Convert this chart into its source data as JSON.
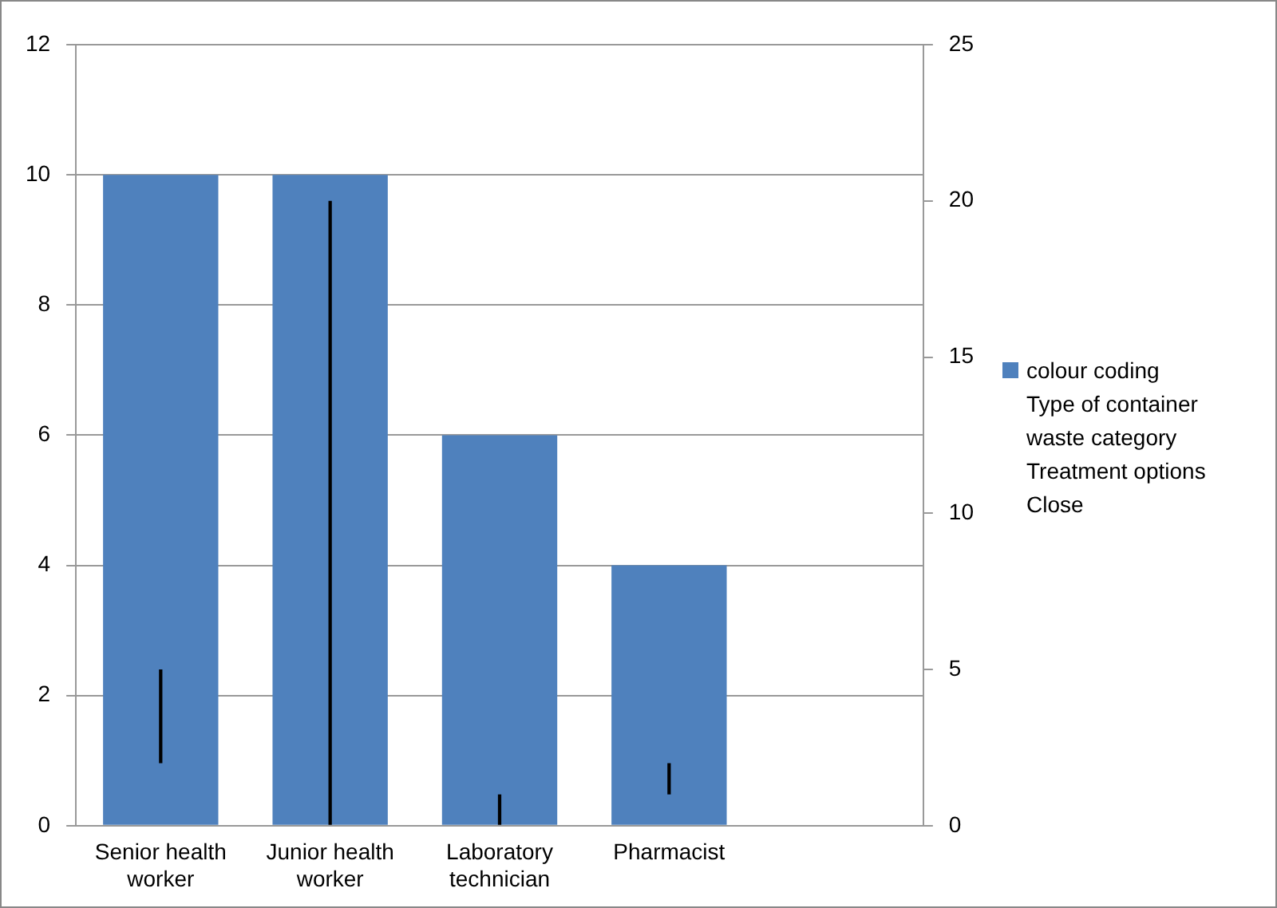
{
  "chart_data": {
    "type": "bar",
    "categories": [
      "Senior health worker",
      "Junior health worker",
      "Laboratory technician",
      "Pharmacist",
      null
    ],
    "series": [
      {
        "name": "colour coding",
        "color": "#4f81bd",
        "values": [
          10,
          10,
          6,
          4,
          null
        ]
      },
      {
        "type": "bar",
        "axis": "y2",
        "color": "#000000",
        "base": [
          2,
          0,
          0,
          1,
          null
        ],
        "values": [
          3,
          20,
          1,
          1,
          null
        ]
      },
      {
        "type": "line",
        "name": "Type of container",
        "values": [
          null,
          null,
          null,
          null,
          null
        ]
      },
      {
        "type": "line",
        "name": "waste category",
        "values": [
          null,
          null,
          null,
          null,
          null
        ]
      },
      {
        "type": "line",
        "name": "Treatment options",
        "values": [
          null,
          null,
          null,
          null,
          null
        ]
      },
      {
        "type": "line",
        "name": "Close",
        "values": [
          null,
          null,
          null,
          null,
          null
        ]
      }
    ],
    "ylim": [
      0,
      12
    ],
    "yticks": [
      0,
      2,
      4,
      6,
      8,
      10,
      12
    ],
    "y2lim": [
      0,
      25
    ],
    "y2ticks": [
      0,
      5,
      10,
      15,
      20,
      25
    ],
    "grid": "y",
    "legend": "right"
  }
}
